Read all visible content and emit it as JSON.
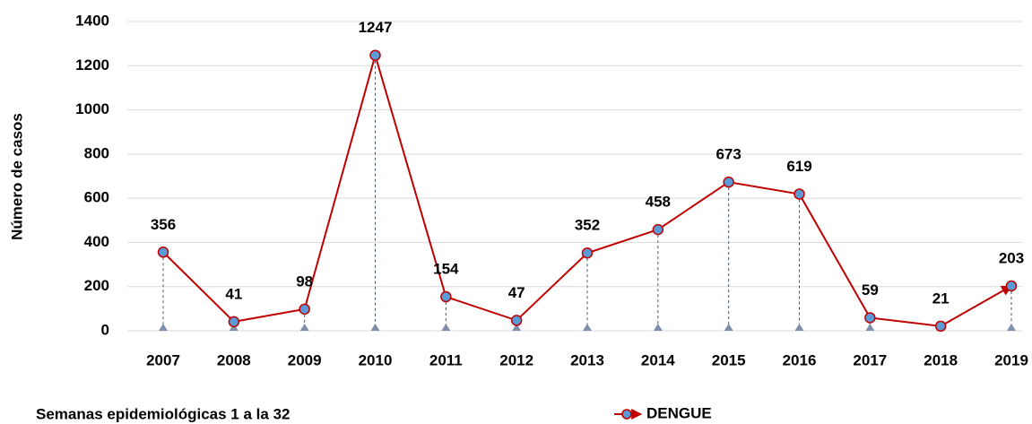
{
  "chart_data": {
    "type": "line",
    "y_label": "Número de casos",
    "footnote": "Semanas epidemiológicas 1 a la 32",
    "categories": [
      "2007",
      "2008",
      "2009",
      "2010",
      "2011",
      "2012",
      "2013",
      "2014",
      "2015",
      "2016",
      "2017",
      "2018",
      "2019"
    ],
    "series": [
      {
        "name": "DENGUE",
        "color": "#c00000",
        "marker_color": "#5b9bd5",
        "values": [
          356,
          41,
          98,
          1247,
          154,
          47,
          352,
          458,
          673,
          619,
          59,
          21,
          203
        ]
      }
    ],
    "ylim": [
      0,
      1400
    ],
    "yticks": [
      0,
      200,
      400,
      600,
      800,
      1000,
      1200,
      1400
    ],
    "grid": true,
    "drop_lines": true,
    "legend": "bottom"
  }
}
